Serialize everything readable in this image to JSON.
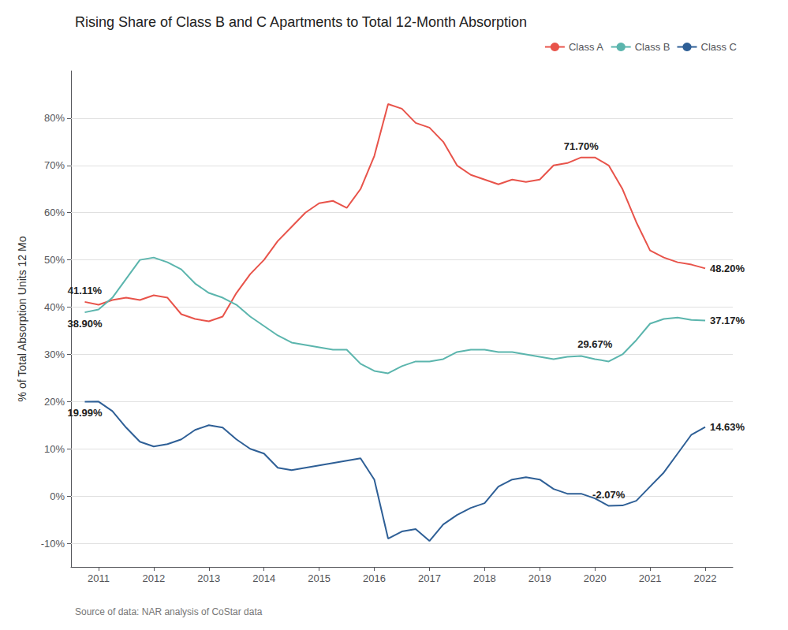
{
  "chart_data": {
    "type": "line",
    "title": "Rising Share of Class B and C Apartments to Total 12-Month Absorption",
    "ylabel": "% of Total Absorption Units 12 Mo",
    "source": "Source of data: NAR analysis of CoStar data",
    "x": [
      2010.75,
      2011.0,
      2011.25,
      2011.5,
      2011.75,
      2012.0,
      2012.25,
      2012.5,
      2012.75,
      2013.0,
      2013.25,
      2013.5,
      2013.75,
      2014.0,
      2014.25,
      2014.5,
      2014.75,
      2015.0,
      2015.25,
      2015.5,
      2015.75,
      2016.0,
      2016.25,
      2016.5,
      2016.75,
      2017.0,
      2017.25,
      2017.5,
      2017.75,
      2018.0,
      2018.25,
      2018.5,
      2018.75,
      2019.0,
      2019.25,
      2019.5,
      2019.75,
      2020.0,
      2020.25,
      2020.5,
      2020.75,
      2021.0,
      2021.25,
      2021.5,
      2021.75,
      2022.0
    ],
    "series": [
      {
        "name": "Class A",
        "color": "#E8534A",
        "values": [
          41.11,
          40.5,
          41.5,
          42.0,
          41.5,
          42.5,
          42.0,
          38.5,
          37.5,
          37.0,
          38.0,
          43.0,
          47.0,
          50.0,
          54.0,
          57.0,
          60.0,
          62.0,
          62.5,
          61.0,
          65.0,
          72.0,
          83.0,
          82.0,
          79.0,
          78.0,
          75.0,
          70.0,
          68.0,
          67.0,
          66.0,
          67.0,
          66.5,
          67.0,
          70.0,
          70.5,
          71.7,
          71.7,
          70.0,
          65.0,
          58.0,
          52.0,
          50.5,
          49.5,
          49.0,
          48.2
        ]
      },
      {
        "name": "Class B",
        "color": "#5BB5AD",
        "values": [
          38.9,
          39.5,
          42.0,
          46.0,
          50.0,
          50.5,
          49.5,
          48.0,
          45.0,
          43.0,
          42.0,
          40.5,
          38.0,
          36.0,
          34.0,
          32.5,
          32.0,
          31.5,
          31.0,
          31.0,
          28.0,
          26.5,
          26.0,
          27.5,
          28.5,
          28.5,
          29.0,
          30.5,
          31.0,
          31.0,
          30.5,
          30.5,
          30.0,
          29.5,
          29.0,
          29.5,
          29.67,
          29.0,
          28.5,
          30.0,
          33.0,
          36.5,
          37.5,
          37.8,
          37.3,
          37.17
        ]
      },
      {
        "name": "Class C",
        "color": "#2E5F96",
        "values": [
          19.99,
          20.0,
          18.0,
          14.5,
          11.5,
          10.5,
          11.0,
          12.0,
          14.0,
          15.0,
          14.5,
          12.0,
          10.0,
          9.0,
          6.0,
          5.5,
          6.0,
          6.5,
          7.0,
          7.5,
          8.0,
          3.5,
          -9.0,
          -7.5,
          -7.0,
          -9.5,
          -6.0,
          -4.0,
          -2.5,
          -1.5,
          2.0,
          3.5,
          4.0,
          3.5,
          1.5,
          0.5,
          0.5,
          -0.5,
          -2.07,
          -2.0,
          -1.0,
          2.0,
          5.0,
          9.0,
          13.0,
          14.63
        ]
      }
    ],
    "xlim": [
      2010.5,
      2022.5
    ],
    "xticks": [
      2011,
      2012,
      2013,
      2014,
      2015,
      2016,
      2017,
      2018,
      2019,
      2020,
      2021,
      2022
    ],
    "ylim": [
      -15,
      90
    ],
    "yticks": [
      {
        "value": -10,
        "label": "-10%"
      },
      {
        "value": 0,
        "label": "0%"
      },
      {
        "value": 10,
        "label": "10%"
      },
      {
        "value": 20,
        "label": "20%"
      },
      {
        "value": 30,
        "label": "30%"
      },
      {
        "value": 40,
        "label": "40%"
      },
      {
        "value": 50,
        "label": "50%"
      },
      {
        "value": 60,
        "label": "60%"
      },
      {
        "value": 70,
        "label": "70%"
      },
      {
        "value": 80,
        "label": "80%"
      }
    ],
    "grid": true,
    "legend": "upper right",
    "annotations": [
      {
        "text": "41.11%",
        "x": 2010.75,
        "y": 41.11
      },
      {
        "text": "38.90%",
        "x": 2010.75,
        "y": 38.9
      },
      {
        "text": "19.99%",
        "x": 2010.75,
        "y": 19.99
      },
      {
        "text": "71.70%",
        "x": 2019.75,
        "y": 71.7
      },
      {
        "text": "29.67%",
        "x": 2020.0,
        "y": 29.67
      },
      {
        "text": "-2.07%",
        "x": 2020.25,
        "y": -2.07
      },
      {
        "text": "48.20%",
        "x": 2022.0,
        "y": 48.2
      },
      {
        "text": "37.17%",
        "x": 2022.0,
        "y": 37.17
      },
      {
        "text": "14.63%",
        "x": 2022.0,
        "y": 14.63
      }
    ]
  }
}
